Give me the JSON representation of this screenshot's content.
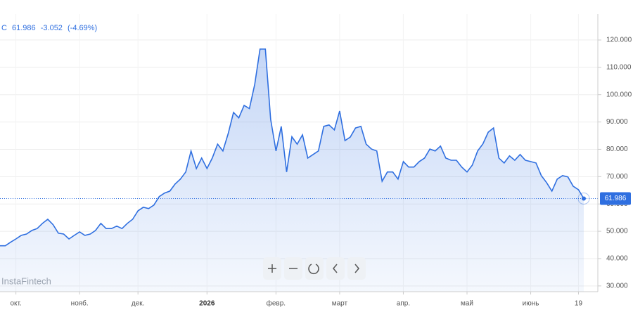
{
  "chart_data": {
    "type": "line",
    "header": {
      "symbol": "C",
      "last": 61.986,
      "change": "-3.052",
      "change_pct": "(-4.69%)"
    },
    "watermark": "InstaFintech",
    "color": "#2f6fe0",
    "categories": [
      null,
      null,
      null,
      "окт.",
      null,
      null,
      null,
      null,
      null,
      null,
      null,
      null,
      null,
      null,
      null,
      "нояб.",
      null,
      null,
      null,
      null,
      null,
      null,
      null,
      null,
      null,
      null,
      "дек.",
      null,
      null,
      null,
      null,
      null,
      null,
      null,
      null,
      null,
      null,
      null,
      null,
      "2026",
      null,
      null,
      null,
      null,
      null,
      null,
      null,
      null,
      null,
      null,
      null,
      null,
      "февр.",
      null,
      null,
      null,
      null,
      null,
      null,
      null,
      null,
      null,
      null,
      null,
      "март",
      null,
      null,
      null,
      null,
      null,
      null,
      null,
      null,
      null,
      null,
      null,
      "апр.",
      null,
      null,
      null,
      null,
      null,
      null,
      null,
      null,
      null,
      null,
      null,
      "май",
      null,
      null,
      null,
      null,
      null,
      null,
      null,
      null,
      null,
      null,
      null,
      "июнь",
      null,
      null,
      null,
      null,
      null,
      null,
      null,
      null,
      "19",
      null
    ],
    "values": [
      44.7,
      44.7,
      46,
      47.2,
      48.5,
      49,
      50.3,
      51,
      52.9,
      54.4,
      52.4,
      49.3,
      49,
      47.2,
      48.5,
      49.8,
      48.5,
      49,
      50.3,
      52.9,
      51,
      51,
      51.9,
      51,
      52.9,
      54.4,
      57.5,
      58.8,
      58.3,
      59.6,
      62.7,
      64,
      64.7,
      67.3,
      69.1,
      71.7,
      79.4,
      73,
      76.8,
      73,
      76.8,
      81.9,
      79.4,
      85.8,
      93.5,
      91.5,
      96.1,
      94.9,
      103.8,
      116.7,
      116.7,
      91,
      79.4,
      88.4,
      71.7,
      84.6,
      81.9,
      85.3,
      76.8,
      78.1,
      79.4,
      88.4,
      88.9,
      87.1,
      94,
      83.2,
      84.5,
      87.8,
      88.4,
      81.9,
      80.1,
      79.4,
      68.3,
      71.7,
      71.7,
      69.1,
      75.5,
      73.5,
      73.5,
      75.5,
      76.8,
      80.1,
      79.4,
      81.2,
      76.8,
      76,
      76,
      73.5,
      71.7,
      74.2,
      79.4,
      82,
      86.3,
      87.8,
      76.8,
      75,
      77.6,
      76,
      78.1,
      76,
      75.5,
      75,
      70.4,
      67.8,
      64.7,
      69.1,
      70.4,
      69.9,
      66.5,
      65.2,
      61.986
    ],
    "ylim": [
      27.9,
      129.5
    ],
    "yticks": [
      {
        "value": 30,
        "label": "30.000"
      },
      {
        "value": 40,
        "label": "40.000"
      },
      {
        "value": 50,
        "label": "50.000"
      },
      {
        "value": 60,
        "label": "60.000"
      },
      {
        "value": 70,
        "label": "70.000"
      },
      {
        "value": 80,
        "label": "80.000"
      },
      {
        "value": 90,
        "label": "90.000"
      },
      {
        "value": 100,
        "label": "100.000"
      },
      {
        "value": 110,
        "label": "110.000"
      },
      {
        "value": 120,
        "label": "120.000"
      }
    ],
    "grid": true
  }
}
